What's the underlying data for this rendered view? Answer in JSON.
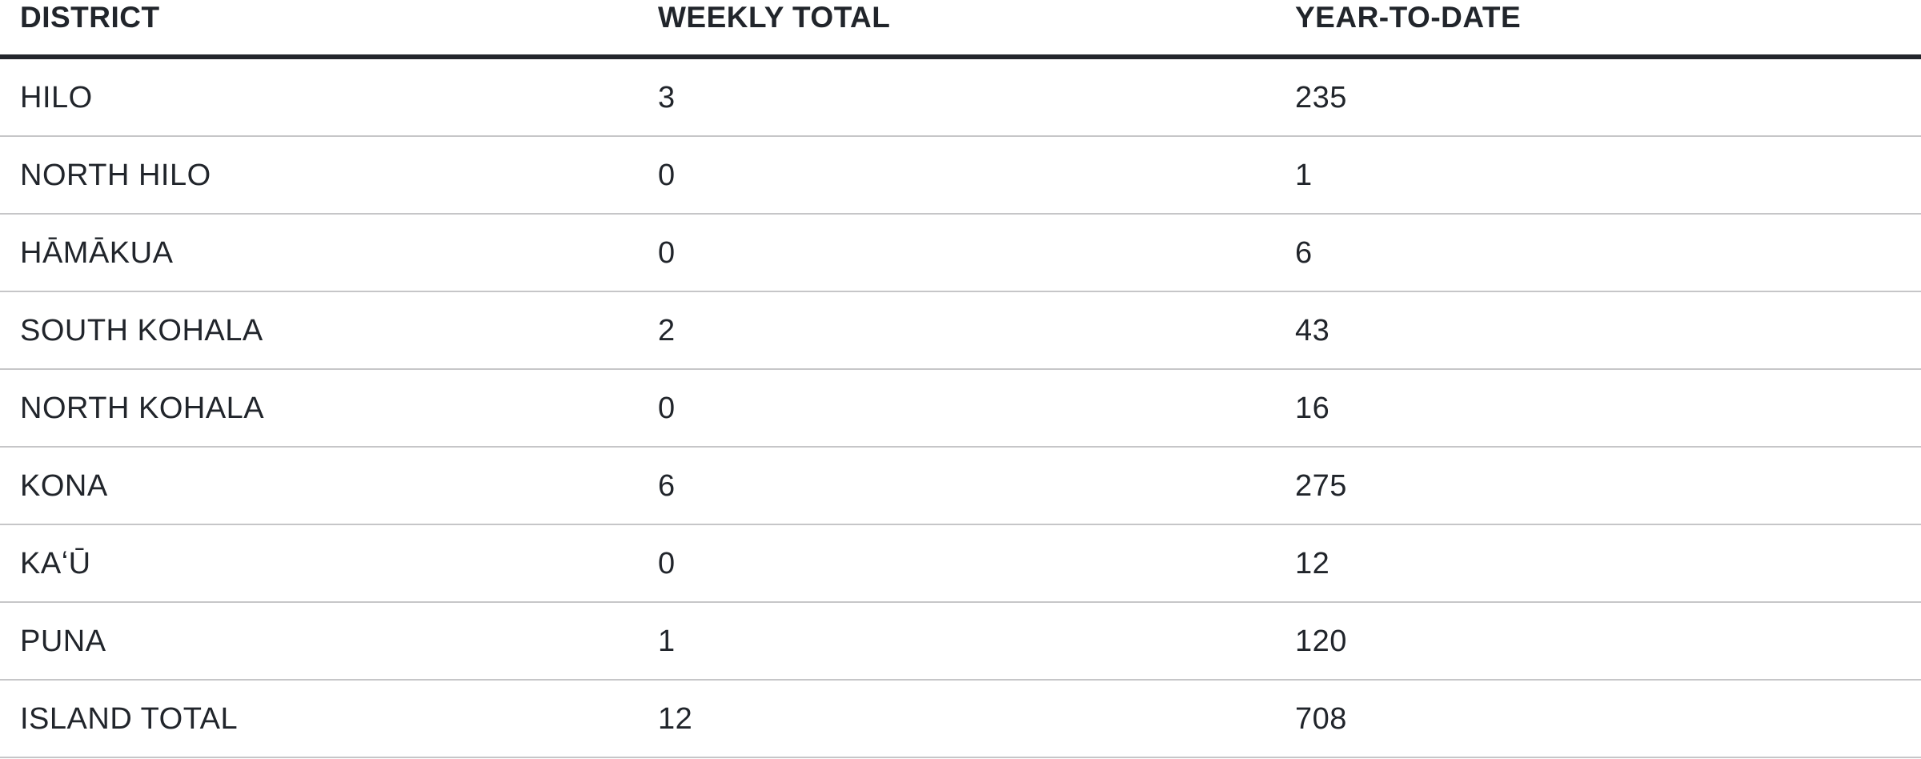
{
  "table": {
    "columns": [
      {
        "key": "district",
        "label": "DISTRICT"
      },
      {
        "key": "weekly_total",
        "label": "WEEKLY TOTAL"
      },
      {
        "key": "year_to_date",
        "label": "YEAR-TO-DATE"
      }
    ],
    "rows": [
      {
        "district": "HILO",
        "weekly_total": "3",
        "year_to_date": "235"
      },
      {
        "district": "NORTH HILO",
        "weekly_total": "0",
        "year_to_date": "1"
      },
      {
        "district": "HĀMĀKUA",
        "weekly_total": "0",
        "year_to_date": "6"
      },
      {
        "district": "SOUTH KOHALA",
        "weekly_total": "2",
        "year_to_date": "43"
      },
      {
        "district": "NORTH KOHALA",
        "weekly_total": "0",
        "year_to_date": "16"
      },
      {
        "district": "KONA",
        "weekly_total": "6",
        "year_to_date": "275"
      },
      {
        "district": "KAʻŪ",
        "weekly_total": "0",
        "year_to_date": "12"
      },
      {
        "district": "PUNA",
        "weekly_total": "1",
        "year_to_date": "120"
      },
      {
        "district": "ISLAND TOTAL",
        "weekly_total": "12",
        "year_to_date": "708"
      }
    ]
  },
  "colors": {
    "text": "#21252b",
    "header_border": "#23262c",
    "row_border": "#c6c6c8",
    "background": "#ffffff"
  },
  "chart_data": {
    "type": "table",
    "title": "",
    "columns": [
      "DISTRICT",
      "WEEKLY TOTAL",
      "YEAR-TO-DATE"
    ],
    "rows": [
      [
        "HILO",
        3,
        235
      ],
      [
        "NORTH HILO",
        0,
        1
      ],
      [
        "HĀMĀKUA",
        0,
        6
      ],
      [
        "SOUTH KOHALA",
        2,
        43
      ],
      [
        "NORTH KOHALA",
        0,
        16
      ],
      [
        "KONA",
        6,
        275
      ],
      [
        "KAʻŪ",
        0,
        12
      ],
      [
        "PUNA",
        1,
        120
      ],
      [
        "ISLAND TOTAL",
        12,
        708
      ]
    ]
  }
}
